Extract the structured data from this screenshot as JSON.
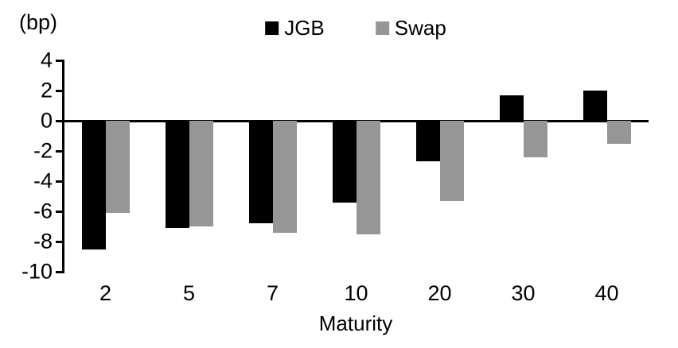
{
  "unit_label": "(bp)",
  "legend": {
    "jgb_label": "JGB",
    "swap_label": "Swap"
  },
  "colors": {
    "jgb": "#000000",
    "swap": "#969696",
    "axis": "#000000",
    "background": "#ffffff"
  },
  "chart_data": {
    "type": "bar",
    "title": "",
    "xlabel": "Maturity",
    "ylabel": "(bp)",
    "categories": [
      "2",
      "5",
      "7",
      "10",
      "20",
      "30",
      "40"
    ],
    "series": [
      {
        "name": "JGB",
        "color": "#000000",
        "values": [
          -8.5,
          -7.1,
          -6.8,
          -5.4,
          -2.7,
          1.7,
          2.0
        ]
      },
      {
        "name": "Swap",
        "color": "#969696",
        "values": [
          -6.1,
          -7.0,
          -7.4,
          -7.5,
          -5.3,
          -2.4,
          -1.5
        ]
      }
    ],
    "ylim": [
      -10,
      4
    ],
    "yticks": [
      4,
      2,
      0,
      -2,
      -4,
      -6,
      -8,
      -10
    ],
    "ytick_interval": 2,
    "grid": false,
    "legend_position": "top-center"
  }
}
